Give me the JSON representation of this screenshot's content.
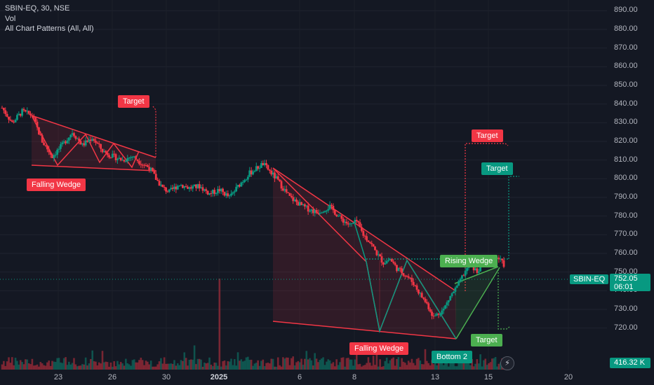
{
  "legend": {
    "symbol_line": "SBIN-EQ, 30, NSE",
    "volume_line": "Vol",
    "indicator_line": "All Chart Patterns (All, All)"
  },
  "colors": {
    "background": "#141823",
    "up": "#089981",
    "down": "#f23645",
    "pattern_red": "#f23645",
    "pattern_green": "#4caf50",
    "target_teal": "#089981"
  },
  "current_price": {
    "symbol": "SBIN-EQ",
    "price": "752.05",
    "countdown": "06:01"
  },
  "volume_label": "416.32 K",
  "icons": {
    "replay": "lightning-icon"
  },
  "chart_data": {
    "type": "candlestick",
    "y_axis": {
      "ylim": [
        712,
        892
      ],
      "ticks": [
        "890.00",
        "880.00",
        "870.00",
        "860.00",
        "850.00",
        "840.00",
        "830.00",
        "820.00",
        "810.00",
        "800.00",
        "790.00",
        "780.00",
        "770.00",
        "760.00",
        "750.00",
        "740.00",
        "730.00",
        "720.00"
      ]
    },
    "x_axis": {
      "ticks": [
        "23",
        "26",
        "30",
        "2025",
        "6",
        "8",
        "13",
        "15",
        "20"
      ]
    },
    "price_path": [
      [
        0,
        838
      ],
      [
        3,
        830
      ],
      [
        6,
        836
      ],
      [
        9,
        834
      ],
      [
        12,
        820
      ],
      [
        15,
        812
      ],
      [
        18,
        818
      ],
      [
        21,
        825
      ],
      [
        24,
        818
      ],
      [
        27,
        822
      ],
      [
        30,
        815
      ],
      [
        33,
        812
      ],
      [
        36,
        810
      ],
      [
        39,
        812
      ],
      [
        42,
        808
      ],
      [
        44,
        806
      ],
      [
        46,
        800
      ],
      [
        48,
        795
      ],
      [
        50,
        793
      ],
      [
        53,
        797
      ],
      [
        56,
        795
      ],
      [
        59,
        796
      ],
      [
        62,
        792
      ],
      [
        65,
        794
      ],
      [
        68,
        790
      ],
      [
        71,
        797
      ],
      [
        74,
        803
      ],
      [
        78,
        808
      ],
      [
        82,
        800
      ],
      [
        86,
        790
      ],
      [
        90,
        785
      ],
      [
        94,
        782
      ],
      [
        98,
        785
      ],
      [
        101,
        779
      ],
      [
        104,
        775
      ],
      [
        106,
        777
      ],
      [
        108,
        770
      ],
      [
        110,
        766
      ],
      [
        112,
        760
      ],
      [
        114,
        755
      ],
      [
        116,
        757
      ],
      [
        118,
        752
      ],
      [
        121,
        748
      ],
      [
        123,
        744
      ],
      [
        125,
        738
      ],
      [
        127,
        733
      ],
      [
        129,
        726
      ],
      [
        132,
        730
      ],
      [
        134,
        737
      ],
      [
        136,
        742
      ],
      [
        138,
        749
      ],
      [
        140,
        754
      ],
      [
        142,
        750
      ],
      [
        144,
        756
      ],
      [
        146,
        754
      ],
      [
        148,
        758
      ],
      [
        150,
        754
      ]
    ],
    "price_path_units": [
      "bar_index",
      "price"
    ],
    "volume_spike_bar": 65,
    "patterns": [
      {
        "name": "Falling Wedge",
        "label": "Falling Wedge",
        "color": "red",
        "target_label": "Target"
      },
      {
        "name": "Falling Wedge",
        "label": "Falling Wedge",
        "color": "red",
        "target_label": "Target"
      },
      {
        "name": "Rising Wedge",
        "label": "Rising Wedge",
        "color": "green",
        "target_label": "Target"
      },
      {
        "name": "Bottom 2",
        "label": "Bottom 2",
        "color": "teal",
        "target_label": "Target"
      }
    ]
  }
}
